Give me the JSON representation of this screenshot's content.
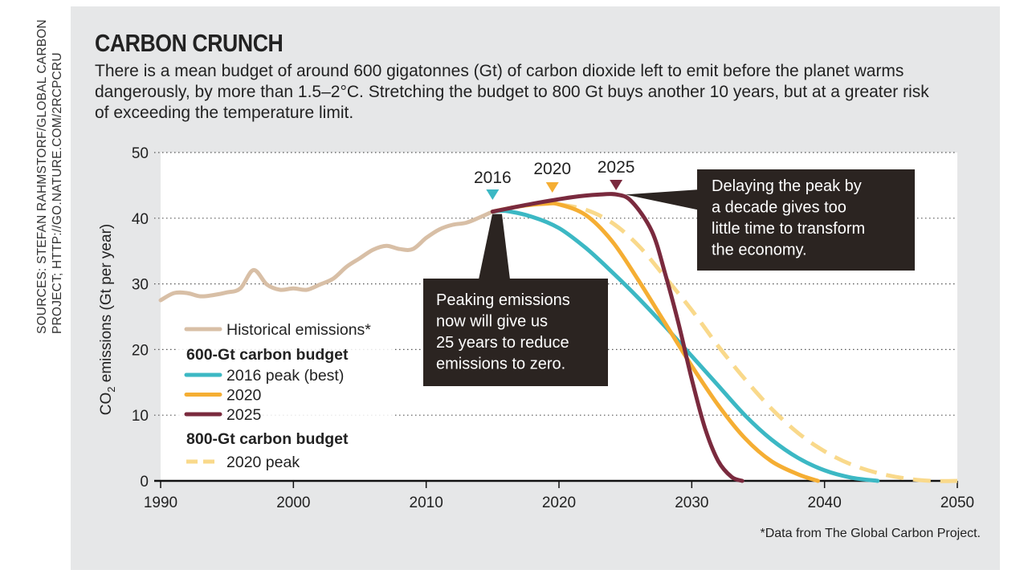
{
  "sources": "SOURCES: STEFAN RAHMSTORF/GLOBAL CARBON PROJECT; HTTP://GO.NATURE.COM/2RCPCRU",
  "title": "CARBON CRUNCH",
  "subtitle": "There is a mean budget of around 600 gigatonnes (Gt) of carbon dioxide left to emit before the planet warms dangerously, by more than 1.5–2°C. Stretching the budget to 800 Gt buys another 10 years, but at a greater risk of exceeding the temperature limit.",
  "footnote": "*Data from The Global Carbon Project.",
  "colors": {
    "panel": "#e6e7e8",
    "plot_bg": "#ffffff",
    "historical": "#d8bfa6",
    "peak_2016": "#3cb8c4",
    "peak_2020": "#f5ae33",
    "peak_2025": "#7a2a3e",
    "budget800_2020": "#f9d98b",
    "callout_bg": "#2b2421",
    "callout_text": "#ffffff",
    "grid": "#555555"
  },
  "chart_data": {
    "type": "line",
    "xlim": [
      1990,
      2050
    ],
    "ylim": [
      0,
      50
    ],
    "xticks": [
      1990,
      2000,
      2010,
      2020,
      2030,
      2040,
      2050
    ],
    "yticks": [
      0,
      10,
      20,
      30,
      40,
      50
    ],
    "xtick_labels": [
      "1990",
      "2000",
      "2010",
      "2020",
      "2030",
      "2040",
      "2050"
    ],
    "ytick_labels": [
      "0",
      "10",
      "20",
      "30",
      "40",
      "50"
    ],
    "ylabel_main": "CO",
    "ylabel_sub": "2",
    "ylabel_rest": " emissions (Gt per year)",
    "grid": "horizontal dotted",
    "legend": {
      "position": "left",
      "historical_label": "Historical emissions*",
      "group1_title": "600-Gt carbon budget",
      "group1_items": [
        "2016 peak (best)",
        "2020",
        "2025"
      ],
      "group2_title": "800-Gt carbon budget",
      "group2_items": [
        "2020 peak"
      ]
    },
    "series": [
      {
        "name": "Historical emissions*",
        "style": "solid",
        "color_key": "historical",
        "points": [
          [
            1990,
            27.5
          ],
          [
            1991,
            28.6
          ],
          [
            1992,
            28.6
          ],
          [
            1993,
            28.1
          ],
          [
            1994,
            28.3
          ],
          [
            1995,
            28.7
          ],
          [
            1996,
            29.3
          ],
          [
            1997,
            32.1
          ],
          [
            1998,
            29.9
          ],
          [
            1999,
            29.1
          ],
          [
            2000,
            29.3
          ],
          [
            2001,
            29.1
          ],
          [
            2002,
            29.9
          ],
          [
            2003,
            30.8
          ],
          [
            2004,
            32.6
          ],
          [
            2005,
            33.9
          ],
          [
            2006,
            35.2
          ],
          [
            2007,
            35.8
          ],
          [
            2008,
            35.3
          ],
          [
            2009,
            35.3
          ],
          [
            2010,
            37.0
          ],
          [
            2011,
            38.3
          ],
          [
            2012,
            39.0
          ],
          [
            2013,
            39.3
          ],
          [
            2014,
            40.1
          ],
          [
            2015,
            41.0
          ]
        ]
      },
      {
        "name": "2016 peak (best)",
        "style": "solid",
        "color_key": "peak_2016",
        "points": [
          [
            2015,
            41.0
          ],
          [
            2016,
            41.1
          ],
          [
            2018,
            40.2
          ],
          [
            2020,
            38.5
          ],
          [
            2022,
            35.5
          ],
          [
            2024,
            31.8
          ],
          [
            2026,
            27.8
          ],
          [
            2028,
            23.5
          ],
          [
            2030,
            19.0
          ],
          [
            2032,
            14.5
          ],
          [
            2034,
            10.0
          ],
          [
            2036,
            6.3
          ],
          [
            2038,
            3.5
          ],
          [
            2040,
            1.6
          ],
          [
            2042,
            0.5
          ],
          [
            2044,
            0.0
          ]
        ]
      },
      {
        "name": "2020",
        "style": "solid",
        "color_key": "peak_2020",
        "points": [
          [
            2015,
            41.0
          ],
          [
            2017,
            41.8
          ],
          [
            2019,
            42.2
          ],
          [
            2020,
            42.1
          ],
          [
            2022,
            40.5
          ],
          [
            2024,
            36.5
          ],
          [
            2026,
            30.5
          ],
          [
            2028,
            24.0
          ],
          [
            2030,
            17.5
          ],
          [
            2032,
            11.5
          ],
          [
            2034,
            6.5
          ],
          [
            2036,
            3.0
          ],
          [
            2038,
            1.0
          ],
          [
            2039.5,
            0.0
          ]
        ]
      },
      {
        "name": "2025",
        "style": "solid",
        "color_key": "peak_2025",
        "points": [
          [
            2015,
            41.0
          ],
          [
            2018,
            42.2
          ],
          [
            2021,
            43.2
          ],
          [
            2023,
            43.6
          ],
          [
            2024.4,
            43.6
          ],
          [
            2025.5,
            42.5
          ],
          [
            2027,
            38.0
          ],
          [
            2028,
            31.5
          ],
          [
            2029,
            24.0
          ],
          [
            2030,
            15.5
          ],
          [
            2031,
            8.0
          ],
          [
            2032,
            3.0
          ],
          [
            2033,
            0.6
          ],
          [
            2033.8,
            0.0
          ]
        ]
      },
      {
        "name": "2020 peak",
        "style": "dashed",
        "color_key": "budget800_2020",
        "points": [
          [
            2020,
            42.1
          ],
          [
            2022,
            41.3
          ],
          [
            2024,
            39.3
          ],
          [
            2026,
            35.8
          ],
          [
            2028,
            31.0
          ],
          [
            2030,
            26.0
          ],
          [
            2032,
            20.5
          ],
          [
            2034,
            15.5
          ],
          [
            2036,
            11.0
          ],
          [
            2038,
            7.3
          ],
          [
            2040,
            4.5
          ],
          [
            2042,
            2.5
          ],
          [
            2044,
            1.2
          ],
          [
            2046,
            0.4
          ],
          [
            2048,
            0.0
          ],
          [
            2050,
            0.0
          ]
        ]
      }
    ],
    "peak_markers": [
      {
        "label": "2016",
        "x": 2015.0,
        "color_key": "peak_2016"
      },
      {
        "label": "2020",
        "x": 2019.5,
        "color_key": "peak_2020"
      },
      {
        "label": "2025",
        "x": 2024.3,
        "color_key": "peak_2025"
      }
    ],
    "annotations": {
      "callout_now": {
        "lines": [
          "Peaking emissions",
          "now will give us",
          "25 years to reduce",
          "emissions to zero."
        ],
        "pointer_data": [
          2015.1,
          41.0
        ]
      },
      "callout_delay": {
        "lines": [
          "Delaying the peak by",
          "a decade gives too",
          "little time to transform",
          "the economy."
        ],
        "pointer_data": [
          2025.0,
          43.6
        ]
      }
    }
  }
}
